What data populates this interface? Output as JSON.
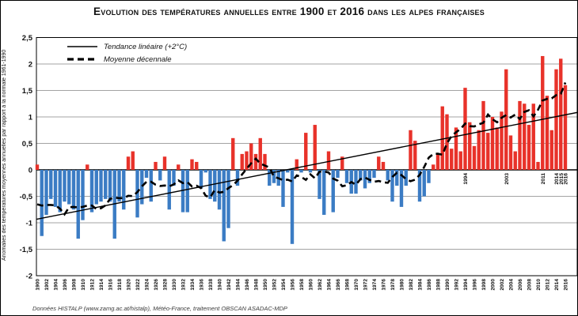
{
  "title": "Evolution des températures annuelles entre 1900 et 2016 dans les alpes françaises",
  "y_axis": {
    "label": "Anomalies des températures moyennes annuelles par rapport à la normale 1961-1990",
    "tick_labels": [
      "2,5",
      "2",
      "1,5",
      "1",
      "0,5",
      "0",
      "-0,5",
      "-1",
      "-1,5",
      "-2"
    ],
    "tick_values": [
      2.5,
      2,
      1.5,
      1,
      0.5,
      0,
      -0.5,
      -1,
      -1.5,
      -2
    ]
  },
  "legend": {
    "trend_label": "Tendance linéaire (+2°C)",
    "decadal_label": "Moyenne décennale"
  },
  "caption": "Données HISTALP (www.zamg.ac.at/histalp), Météo-France, traitement OBSCAN ASADAC-MDP",
  "colors": {
    "positive_bar": "#e8322a",
    "negative_bar": "#3b7cc4",
    "grid": "#a3a3a3",
    "axis": "#000000",
    "text": "#111111"
  },
  "chart_data": {
    "type": "bar",
    "title": "Evolution des températures annuelles entre 1900 et 2016 dans les alpes françaises",
    "xlabel": "",
    "ylabel": "Anomalies des températures moyennes annuelles par rapport à la normale 1961-1990",
    "ylim": [
      -2,
      2.5
    ],
    "grid": true,
    "legend_position": "top-left",
    "year_start": 1900,
    "year_end": 2016,
    "x_tick_step": 2,
    "values": [
      0.1,
      -1.25,
      -0.85,
      -0.55,
      -0.7,
      -0.8,
      -0.6,
      -0.65,
      -0.75,
      -1.3,
      -0.95,
      0.1,
      -0.8,
      -0.65,
      -0.6,
      -0.55,
      -0.6,
      -1.3,
      -0.6,
      -0.75,
      0.25,
      0.35,
      -0.9,
      -0.65,
      -0.15,
      -0.6,
      0.15,
      -0.2,
      0.25,
      -0.75,
      -0.3,
      0.1,
      -0.8,
      -0.8,
      0.2,
      0.15,
      -0.35,
      -0.05,
      -0.55,
      -0.6,
      -0.75,
      -1.35,
      -1.1,
      0.6,
      -0.3,
      0.3,
      0.35,
      0.5,
      0.3,
      0.6,
      0.3,
      -0.3,
      -0.25,
      -0.3,
      -0.7,
      -0.05,
      -1.4,
      0.2,
      -0.05,
      0.7,
      -0.05,
      0.85,
      -0.55,
      -0.85,
      0.35,
      -0.8,
      -0.15,
      0.25,
      -0.25,
      -0.45,
      -0.45,
      -0.2,
      -0.35,
      -0.25,
      -0.15,
      0.25,
      0.15,
      -0.2,
      -0.6,
      -0.3,
      -0.7,
      -0.3,
      0.75,
      0.55,
      -0.6,
      -0.5,
      -0.25,
      0.1,
      0.3,
      1.2,
      1.05,
      0.4,
      0.8,
      0.35,
      1.55,
      0.9,
      0.45,
      0.75,
      1.3,
      0.7,
      1.0,
      0.8,
      1.1,
      1.9,
      0.65,
      0.35,
      1.3,
      1.25,
      0.85,
      1.25,
      0.15,
      2.15,
      1.4,
      0.75,
      1.9,
      2.1,
      1.6
    ],
    "annotated_years": [
      1994,
      2003,
      2011,
      2014,
      2015,
      2016
    ],
    "trend": {
      "label": "Tendance linéaire (+2°C)",
      "value_1900": -0.93,
      "value_2016": 1.04
    },
    "decadal_mean": {
      "label": "Moyenne décennale",
      "window_years": 10
    }
  }
}
